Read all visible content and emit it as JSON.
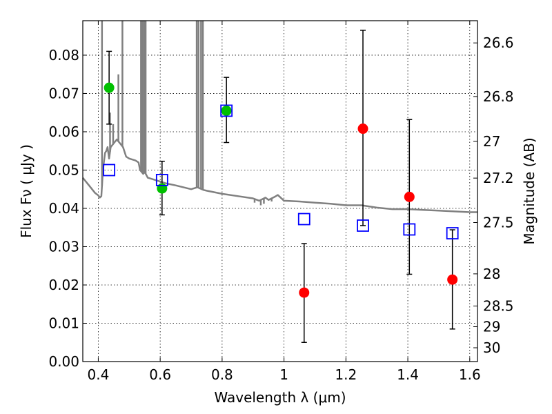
{
  "chart_data": {
    "type": "scatter",
    "title": "",
    "xlabel": "Wavelength  λ (μm)",
    "ylabel": "Flux  Fν  ( μJy )",
    "ylabel_right": "Magnitude (AB)",
    "xlim": [
      0.35,
      1.625
    ],
    "ylim": [
      0.0,
      0.089
    ],
    "grid": true,
    "legend": "none",
    "x_ticks": [
      {
        "value": 0.4,
        "label": "0.4"
      },
      {
        "value": 0.6,
        "label": "0.6"
      },
      {
        "value": 0.8,
        "label": "0.8"
      },
      {
        "value": 1.0,
        "label": "1"
      },
      {
        "value": 1.2,
        "label": "1.2"
      },
      {
        "value": 1.4,
        "label": "1.4"
      },
      {
        "value": 1.6,
        "label": "1.6"
      }
    ],
    "y_ticks": [
      {
        "value": 0.0,
        "label": "0.00"
      },
      {
        "value": 0.01,
        "label": "0.01"
      },
      {
        "value": 0.02,
        "label": "0.02"
      },
      {
        "value": 0.03,
        "label": "0.03"
      },
      {
        "value": 0.04,
        "label": "0.04"
      },
      {
        "value": 0.05,
        "label": "0.05"
      },
      {
        "value": 0.06,
        "label": "0.06"
      },
      {
        "value": 0.07,
        "label": "0.07"
      },
      {
        "value": 0.08,
        "label": "0.08"
      }
    ],
    "right_ticks": [
      {
        "flux": 0.0832,
        "label": "26.6"
      },
      {
        "flux": 0.0692,
        "label": "26.8"
      },
      {
        "flux": 0.0575,
        "label": "27"
      },
      {
        "flux": 0.0479,
        "label": "27.2"
      },
      {
        "flux": 0.0363,
        "label": "27.5"
      },
      {
        "flux": 0.0229,
        "label": "28"
      },
      {
        "flux": 0.0145,
        "label": "28.5"
      },
      {
        "flux": 0.0091,
        "label": "29"
      },
      {
        "flux": 0.0036,
        "label": "30"
      }
    ],
    "colors": {
      "sed": "#808080",
      "photometry_green": "#00c000",
      "photometry_red": "#ff0000",
      "model": "#0000ff",
      "errorbar": "#000000"
    },
    "sed_curve": {
      "x": [
        0.35,
        0.37,
        0.39,
        0.4,
        0.405,
        0.41,
        0.415,
        0.418,
        0.422,
        0.426,
        0.43,
        0.435,
        0.44,
        0.45,
        0.46,
        0.47,
        0.48,
        0.49,
        0.5,
        0.52,
        0.53,
        0.535,
        0.545,
        0.55,
        0.56,
        0.58,
        0.6,
        0.62,
        0.65,
        0.7,
        0.72,
        0.74,
        0.75,
        0.8,
        0.85,
        0.9,
        0.92,
        0.94,
        0.95,
        0.97,
        0.98,
        1.0,
        1.05,
        1.1,
        1.15,
        1.2,
        1.25,
        1.3,
        1.35,
        1.4,
        1.45,
        1.5,
        1.55,
        1.6,
        1.625
      ],
      "y": [
        0.048,
        0.046,
        0.044,
        0.0434,
        0.0428,
        0.0432,
        0.05,
        0.052,
        0.0545,
        0.055,
        0.056,
        0.053,
        0.056,
        0.057,
        0.058,
        0.057,
        0.056,
        0.0535,
        0.053,
        0.0525,
        0.052,
        0.05,
        0.049,
        0.0495,
        0.048,
        0.0475,
        0.047,
        0.0465,
        0.046,
        0.045,
        0.0455,
        0.0448,
        0.0446,
        0.0438,
        0.0432,
        0.0426,
        0.042,
        0.0428,
        0.0422,
        0.043,
        0.0435,
        0.042,
        0.0418,
        0.0415,
        0.0412,
        0.0408,
        0.0408,
        0.0402,
        0.0398,
        0.0398,
        0.0396,
        0.0394,
        0.0392,
        0.039,
        0.039
      ]
    },
    "sed_spikes": [
      {
        "x": 0.412,
        "top": 0.089
      },
      {
        "x": 0.438,
        "top": 0.065
      },
      {
        "x": 0.448,
        "top": 0.062
      },
      {
        "x": 0.465,
        "top": 0.075
      },
      {
        "x": 0.478,
        "top": 0.089
      },
      {
        "x": 0.538,
        "top": 0.089
      },
      {
        "x": 0.543,
        "top": 0.089
      },
      {
        "x": 0.548,
        "top": 0.089
      },
      {
        "x": 0.553,
        "top": 0.089
      },
      {
        "x": 0.718,
        "top": 0.089
      },
      {
        "x": 0.724,
        "top": 0.089
      },
      {
        "x": 0.732,
        "top": 0.089
      },
      {
        "x": 0.738,
        "top": 0.089
      }
    ],
    "sed_dips": [
      {
        "x": 0.905,
        "bottom": 0.0415
      },
      {
        "x": 0.925,
        "bottom": 0.0408
      },
      {
        "x": 0.935,
        "bottom": 0.0412
      },
      {
        "x": 0.96,
        "bottom": 0.0418
      }
    ],
    "observed_points": [
      {
        "x": 0.435,
        "y": 0.0715,
        "err_low": 0.062,
        "err_high": 0.081,
        "color": "green"
      },
      {
        "x": 0.606,
        "y": 0.0452,
        "err_low": 0.0383,
        "err_high": 0.0523,
        "color": "green"
      },
      {
        "x": 0.814,
        "y": 0.0655,
        "err_low": 0.0572,
        "err_high": 0.0742,
        "color": "green"
      },
      {
        "x": 1.065,
        "y": 0.018,
        "err_low": 0.005,
        "err_high": 0.0308,
        "color": "red"
      },
      {
        "x": 1.255,
        "y": 0.0608,
        "err_low": 0.0355,
        "err_high": 0.0865,
        "color": "red"
      },
      {
        "x": 1.405,
        "y": 0.043,
        "err_low": 0.0228,
        "err_high": 0.0632,
        "color": "red"
      },
      {
        "x": 1.544,
        "y": 0.0214,
        "err_low": 0.0085,
        "err_high": 0.0344,
        "color": "red"
      }
    ],
    "model_points": [
      {
        "x": 0.435,
        "y": 0.05
      },
      {
        "x": 0.606,
        "y": 0.0474
      },
      {
        "x": 0.814,
        "y": 0.0655
      },
      {
        "x": 1.065,
        "y": 0.0372
      },
      {
        "x": 1.255,
        "y": 0.0355
      },
      {
        "x": 1.405,
        "y": 0.0345
      },
      {
        "x": 1.544,
        "y": 0.0335
      }
    ]
  }
}
